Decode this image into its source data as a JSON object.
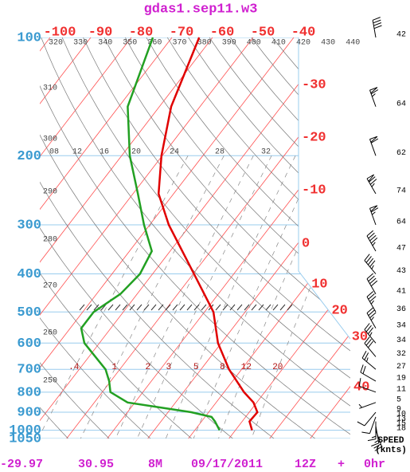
{
  "chart_data": {
    "type": "skewt",
    "title": "gdas1.sep11.w3",
    "log_y": true,
    "ylim": [
      100,
      1050
    ],
    "yticks": [
      100,
      200,
      300,
      400,
      500,
      600,
      700,
      800,
      900,
      1000,
      1050
    ],
    "temperature_ticks_top": [
      -100,
      -90,
      -80,
      -70,
      -60,
      -50,
      -40
    ],
    "temperature_ticks_right": [
      -30,
      -20,
      -10,
      0,
      10,
      20,
      30,
      40
    ],
    "theta_labels": [
      250,
      260,
      270,
      280,
      290,
      300,
      310,
      320,
      330,
      340,
      350,
      360,
      370,
      380,
      390,
      400,
      410,
      420,
      430,
      440
    ],
    "upper_labels": [
      {
        "value": 8,
        "label": "08"
      },
      12,
      16,
      20,
      24,
      28,
      32
    ],
    "mixing_ratio_labels": [
      {
        "value": 0.4,
        "label": ".4"
      },
      1,
      2,
      3,
      5,
      8,
      12,
      20
    ],
    "series": [
      {
        "color": "#e00000",
        "pressure": [
          100,
          150,
          200,
          250,
          300,
          400,
          500,
          600,
          700,
          800,
          850,
          900,
          950,
          1000
        ],
        "values": [
          -63.3,
          -57.1,
          -50.2,
          -43.7,
          -35.3,
          -19.8,
          -7.8,
          -0.8,
          6.9,
          14.9,
          19.2,
          22,
          21.8,
          24.1
        ]
      },
      {
        "color": "#22a022",
        "pressure": [
          100,
          150,
          200,
          250,
          300,
          350,
          400,
          450,
          500,
          550,
          600,
          700,
          750,
          800,
          850,
          900,
          925,
          950,
          1000
        ],
        "values": [
          -74.7,
          -67.8,
          -58,
          -48.8,
          -41.4,
          -34.5,
          -33.1,
          -34.1,
          -37.3,
          -37.3,
          -33.7,
          -23.5,
          -20.4,
          -18,
          -11.8,
          5.7,
          11.6,
          13.3,
          16.1
        ]
      }
    ],
    "wind": {
      "label": "SPEED",
      "unit": "(knts)",
      "pressure": [
        100,
        150,
        200,
        250,
        300,
        350,
        400,
        450,
        500,
        550,
        600,
        650,
        700,
        750,
        800,
        850,
        900,
        925,
        950,
        975,
        1000
      ],
      "speed": [
        42,
        64,
        62,
        74,
        64,
        47,
        43,
        41,
        36,
        34,
        34,
        32,
        27,
        19,
        11,
        5,
        9,
        10,
        13,
        15,
        18
      ],
      "direction": [
        350,
        340,
        340,
        330,
        340,
        330,
        320,
        330,
        330,
        330,
        320,
        320,
        310,
        300,
        290,
        250,
        220,
        200,
        180,
        170,
        160
      ]
    },
    "footer": [
      "-29.97",
      "30.95",
      "8M",
      "09/17/2011",
      "12Z",
      "+",
      "0hr"
    ]
  }
}
